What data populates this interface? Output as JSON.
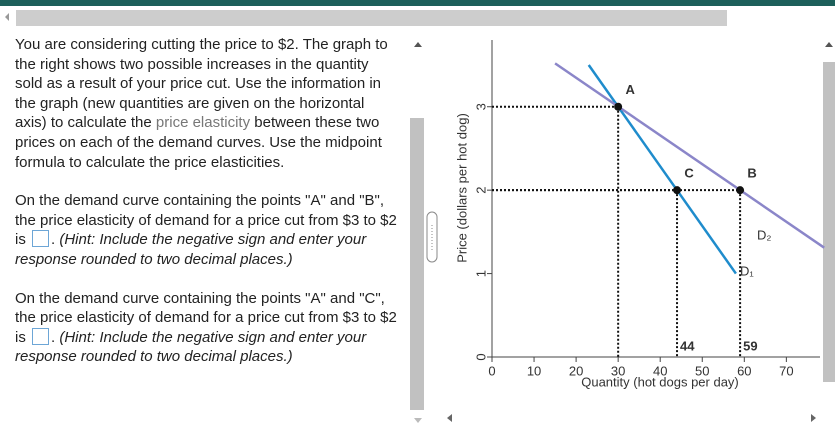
{
  "question": {
    "intro": [
      "You are considering cutting the price to $2. The graph to the right shows two possible increases in the quantity sold as a result of your price cut. Use the information in the graph (new quantities are given on  the horizontal axis) to calculate the ",
      "price elasticity",
      " between these two prices on each of the demand curves. Use the midpoint formula to calculate the price elasticities."
    ],
    "parts": [
      {
        "prompt": "On the demand curve containing the points \"A\" and \"B\", the price elasticity of demand for a price cut from $3 to $2 is",
        "after_input": ".",
        "hint": "(Hint: Include the negative sign and enter your response rounded to two decimal places.)"
      },
      {
        "prompt": "On the demand curve containing the points \"A\" and \"C\", the price elasticity of demand for a price cut from $3 to $2 is",
        "after_input": ".",
        "hint": "(Hint: Include the negative sign and enter your response rounded to two decimal places.)"
      }
    ]
  },
  "chart_data": {
    "type": "line",
    "x_label": "Quantity (hot dogs per day)",
    "y_label": "Price (dollars per hot dog)",
    "xlim": [
      0,
      78
    ],
    "ylim": [
      0,
      3.8
    ],
    "xticks": [
      0,
      10,
      20,
      30,
      40,
      50,
      60,
      70
    ],
    "yticks": [
      0,
      1,
      2,
      3
    ],
    "series": [
      {
        "name": "D₁",
        "color": "#1f8ccc",
        "x": [
          23,
          58
        ],
        "values": [
          3.5,
          1.0
        ]
      },
      {
        "name": "D₂",
        "color": "#8b86c9",
        "x": [
          15,
          79
        ],
        "values": [
          3.52,
          1.31
        ]
      }
    ],
    "points": [
      {
        "label": "A",
        "x": 30,
        "y": 3
      },
      {
        "label": "B",
        "x": 59,
        "y": 2
      },
      {
        "label": "C",
        "x": 44,
        "y": 2
      }
    ]
  }
}
